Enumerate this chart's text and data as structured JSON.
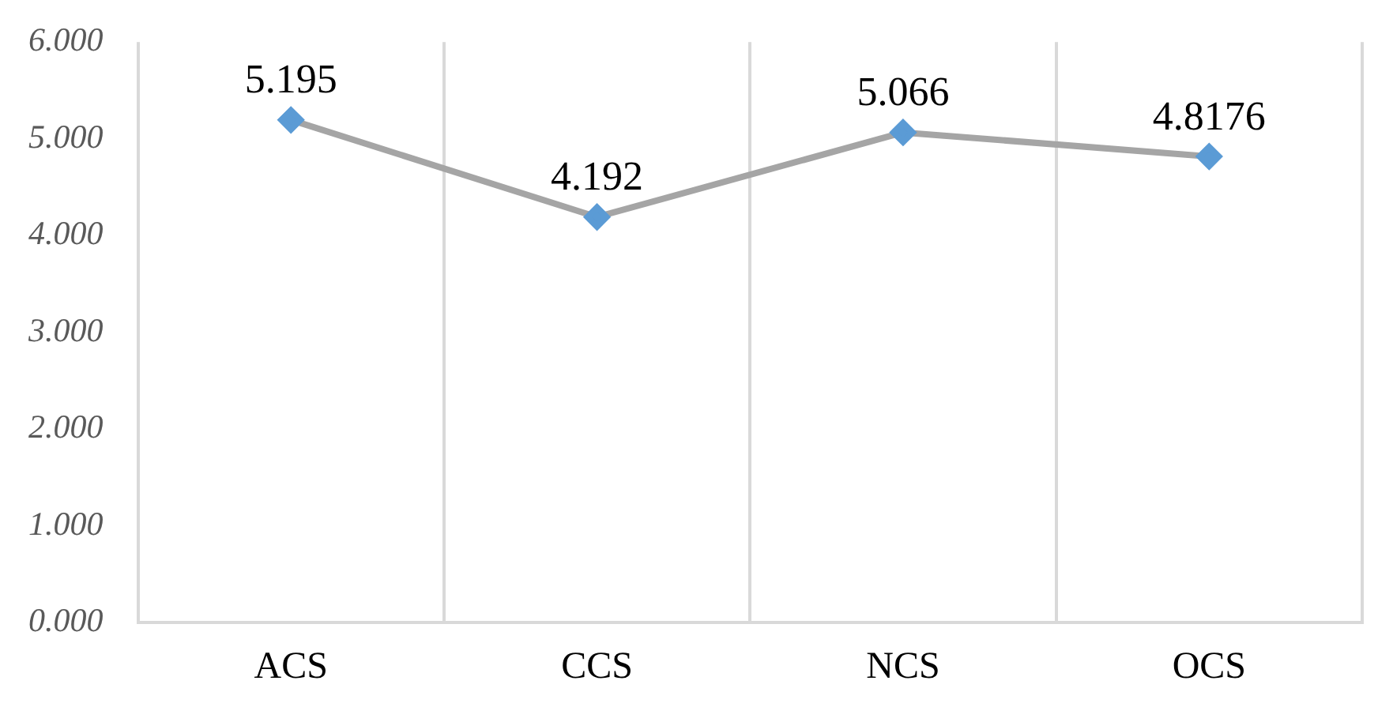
{
  "chart_data": {
    "type": "line",
    "categories": [
      "ACS",
      "CCS",
      "NCS",
      "OCS"
    ],
    "series": [
      {
        "color": "#a5a5a5",
        "colors": [
          "#5b9bd5",
          "#5b9bd5",
          "#5b9bd5",
          "#5b9bd5"
        ],
        "values": [
          5.195,
          4.192,
          5.066,
          4.8176
        ]
      }
    ],
    "marker": "diamond",
    "data_labels": true,
    "ylim": [
      0,
      6
    ],
    "yticks": [
      {
        "value": 0,
        "label": "0.000"
      },
      {
        "value": 1,
        "label": "1.000"
      },
      {
        "value": 2,
        "label": "2.000"
      },
      {
        "value": 3,
        "label": "3.000"
      },
      {
        "value": 4,
        "label": "4.000"
      },
      {
        "value": 5,
        "label": "5.000"
      },
      {
        "value": 6,
        "label": "6.000"
      }
    ],
    "grid": "x",
    "legend": false
  }
}
